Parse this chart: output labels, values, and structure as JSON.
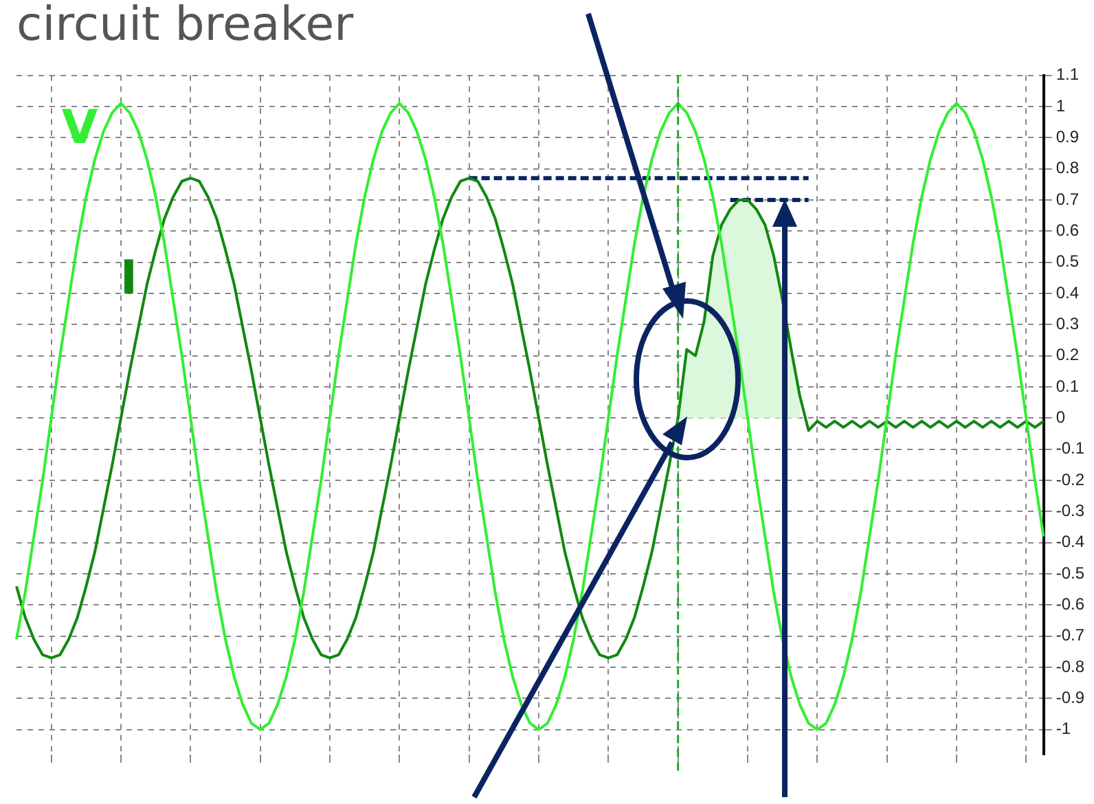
{
  "chart_data": {
    "type": "line",
    "title": "circuit breaker",
    "categories": [
      null,
      null,
      null,
      null,
      null,
      null,
      null,
      null,
      null,
      null,
      null,
      null,
      null,
      null,
      null,
      null,
      null,
      null,
      null,
      null,
      null,
      null,
      null,
      null,
      null,
      null,
      null,
      null,
      null,
      null,
      null,
      null,
      null,
      null,
      null,
      null,
      null,
      null,
      null,
      null,
      null,
      null,
      null,
      null,
      null,
      null,
      null,
      null,
      null,
      null,
      null,
      null,
      null,
      null,
      null,
      null,
      null,
      null,
      null,
      null,
      null,
      null,
      null,
      null,
      null,
      null,
      null,
      null,
      null,
      null,
      null,
      null,
      null,
      null,
      null,
      null,
      null,
      null,
      null,
      null,
      null,
      null,
      null,
      null,
      null,
      null,
      null,
      null,
      null,
      null,
      null,
      null,
      null,
      null,
      null,
      null,
      null,
      null,
      null,
      null,
      null,
      null,
      null,
      null,
      null,
      null,
      null,
      null,
      null,
      null,
      null,
      null,
      null,
      null,
      null,
      null,
      null,
      null,
      null
    ],
    "series": [
      {
        "name": "V",
        "color": "#33ee33",
        "values": [
          -0.71,
          -0.56,
          -0.38,
          -0.2,
          0,
          0.2,
          0.38,
          0.56,
          0.71,
          0.83,
          0.92,
          0.98,
          1.01,
          0.98,
          0.92,
          0.83,
          0.71,
          0.56,
          0.38,
          0.2,
          0,
          -0.2,
          -0.38,
          -0.56,
          -0.71,
          -0.83,
          -0.92,
          -0.98,
          -1,
          -0.98,
          -0.92,
          -0.83,
          -0.71,
          -0.56,
          -0.38,
          -0.2,
          0,
          0.2,
          0.38,
          0.56,
          0.71,
          0.83,
          0.92,
          0.98,
          1.01,
          0.98,
          0.92,
          0.83,
          0.71,
          0.56,
          0.38,
          0.2,
          0,
          -0.2,
          -0.38,
          -0.56,
          -0.71,
          -0.83,
          -0.92,
          -0.98,
          -1,
          -0.98,
          -0.92,
          -0.83,
          -0.71,
          -0.56,
          -0.38,
          -0.2,
          0,
          0.2,
          0.38,
          0.56,
          0.71,
          0.83,
          0.92,
          0.98,
          1.01,
          0.98,
          0.92,
          0.83,
          0.71,
          0.56,
          0.38,
          0.2,
          0,
          -0.2,
          -0.38,
          -0.56,
          -0.71,
          -0.83,
          -0.92,
          -0.98,
          -1,
          -0.98,
          -0.92,
          -0.83,
          -0.71,
          -0.56,
          -0.38,
          -0.2,
          0,
          0.2,
          0.38,
          0.56,
          0.71,
          0.83,
          0.92,
          0.98,
          1.01,
          0.98,
          0.92,
          0.83,
          0.71,
          0.56,
          0.38,
          0.2,
          0,
          -0.2,
          -0.38
        ]
      },
      {
        "type": "area",
        "color": "#dcf8dc",
        "values": [
          null,
          null,
          null,
          null,
          null,
          null,
          null,
          null,
          null,
          null,
          null,
          null,
          null,
          null,
          null,
          null,
          null,
          null,
          null,
          null,
          null,
          null,
          null,
          null,
          null,
          null,
          null,
          null,
          null,
          null,
          null,
          null,
          null,
          null,
          null,
          null,
          null,
          null,
          null,
          null,
          null,
          null,
          null,
          null,
          null,
          null,
          null,
          null,
          null,
          null,
          null,
          null,
          null,
          null,
          null,
          null,
          null,
          null,
          null,
          null,
          null,
          null,
          null,
          null,
          null,
          null,
          null,
          null,
          null,
          null,
          null,
          null,
          null,
          null,
          null,
          null,
          0,
          0.22,
          0.2,
          0.31,
          0.52,
          0.62,
          0.67,
          0.7,
          0.7,
          0.67,
          0.62,
          0.52,
          0.38,
          0.22,
          0.07,
          null,
          null,
          null,
          null,
          null,
          null,
          null,
          null,
          null,
          null,
          null,
          null,
          null,
          null,
          null,
          null,
          null,
          null,
          null,
          null,
          null,
          null,
          null,
          null,
          null,
          null,
          null,
          null
        ]
      },
      {
        "name": "I",
        "color": "#128812",
        "values": [
          -0.54,
          -0.64,
          -0.71,
          -0.76,
          -0.77,
          -0.76,
          -0.71,
          -0.64,
          -0.54,
          -0.43,
          -0.29,
          -0.15,
          0,
          0.15,
          0.29,
          0.43,
          0.54,
          0.64,
          0.71,
          0.76,
          0.77,
          0.76,
          0.71,
          0.64,
          0.54,
          0.43,
          0.29,
          0.15,
          0,
          -0.15,
          -0.29,
          -0.43,
          -0.54,
          -0.64,
          -0.71,
          -0.76,
          -0.77,
          -0.76,
          -0.71,
          -0.64,
          -0.54,
          -0.43,
          -0.29,
          -0.15,
          0,
          0.15,
          0.29,
          0.43,
          0.54,
          0.64,
          0.71,
          0.76,
          0.77,
          0.76,
          0.71,
          0.64,
          0.54,
          0.43,
          0.29,
          0.15,
          0,
          -0.15,
          -0.29,
          -0.43,
          -0.54,
          -0.64,
          -0.71,
          -0.76,
          -0.77,
          -0.76,
          -0.71,
          -0.64,
          -0.54,
          -0.43,
          -0.29,
          -0.15,
          0,
          0.22,
          0.2,
          0.31,
          0.52,
          0.62,
          0.67,
          0.7,
          0.7,
          0.67,
          0.62,
          0.52,
          0.38,
          0.22,
          0.07,
          -0.04,
          -0.01,
          -0.03,
          -0.01,
          -0.03,
          -0.01,
          -0.03,
          -0.01,
          -0.03,
          -0.01,
          -0.03,
          -0.01,
          -0.03,
          -0.01,
          -0.03,
          -0.01,
          -0.03,
          -0.01,
          -0.03,
          -0.01,
          -0.03,
          -0.01,
          -0.03,
          -0.01,
          -0.03,
          -0.01,
          -0.03,
          -0.01
        ]
      },
      {
        "color": "#0b2461",
        "line_style": "dashed",
        "values": [
          null,
          null,
          null,
          null,
          null,
          null,
          null,
          null,
          null,
          null,
          null,
          null,
          null,
          null,
          null,
          null,
          null,
          null,
          null,
          null,
          null,
          null,
          null,
          null,
          null,
          null,
          null,
          null,
          null,
          null,
          null,
          null,
          null,
          null,
          null,
          null,
          null,
          null,
          null,
          null,
          null,
          null,
          null,
          null,
          null,
          null,
          null,
          null,
          null,
          null,
          null,
          null,
          0.77,
          0.77,
          0.77,
          0.77,
          0.77,
          0.77,
          0.77,
          0.77,
          0.77,
          0.77,
          0.77,
          0.77,
          0.77,
          0.77,
          0.77,
          0.77,
          0.77,
          0.77,
          0.77,
          0.77,
          0.77,
          0.77,
          0.77,
          0.77,
          0.77,
          0.77,
          0.77,
          0.77,
          0.77,
          0.77,
          0.77,
          0.77,
          0.77,
          0.77,
          0.77,
          0.77,
          0.77,
          0.77,
          0.77,
          0.77,
          null,
          null,
          null,
          null,
          null,
          null,
          null,
          null,
          null,
          null,
          null,
          null,
          null,
          null,
          null,
          null,
          null,
          null,
          null,
          null,
          null,
          null,
          null,
          null,
          null,
          null,
          null
        ]
      },
      {
        "color": "#0b2461",
        "line_style": "dashed",
        "values": [
          null,
          null,
          null,
          null,
          null,
          null,
          null,
          null,
          null,
          null,
          null,
          null,
          null,
          null,
          null,
          null,
          null,
          null,
          null,
          null,
          null,
          null,
          null,
          null,
          null,
          null,
          null,
          null,
          null,
          null,
          null,
          null,
          null,
          null,
          null,
          null,
          null,
          null,
          null,
          null,
          null,
          null,
          null,
          null,
          null,
          null,
          null,
          null,
          null,
          null,
          null,
          null,
          null,
          null,
          null,
          null,
          null,
          null,
          null,
          null,
          null,
          null,
          null,
          null,
          null,
          null,
          null,
          null,
          null,
          null,
          null,
          null,
          null,
          null,
          null,
          null,
          null,
          null,
          null,
          null,
          null,
          null,
          0.7,
          0.7,
          0.7,
          0.7,
          0.7,
          0.7,
          0.7,
          0.7,
          0.7,
          0.7,
          null,
          null,
          null,
          null,
          null,
          null,
          null,
          null,
          null,
          null,
          null,
          null,
          null,
          null,
          null,
          null,
          null,
          null,
          null,
          null,
          null,
          null,
          null,
          null,
          null,
          null,
          null
        ]
      }
    ],
    "ylim": [
      -1.08,
      1.1
    ],
    "yticks": [
      -1,
      -0.9,
      -0.8,
      -0.7,
      -0.6,
      -0.5,
      -0.4,
      -0.3,
      -0.2,
      -0.1,
      0,
      0.1,
      0.2,
      0.3,
      0.4,
      0.5,
      0.6,
      0.7,
      0.8,
      0.9,
      1,
      1.1
    ],
    "tick_labels": "y",
    "grid": true,
    "legend": false,
    "marker": "none",
    "line_style": "solid"
  }
}
